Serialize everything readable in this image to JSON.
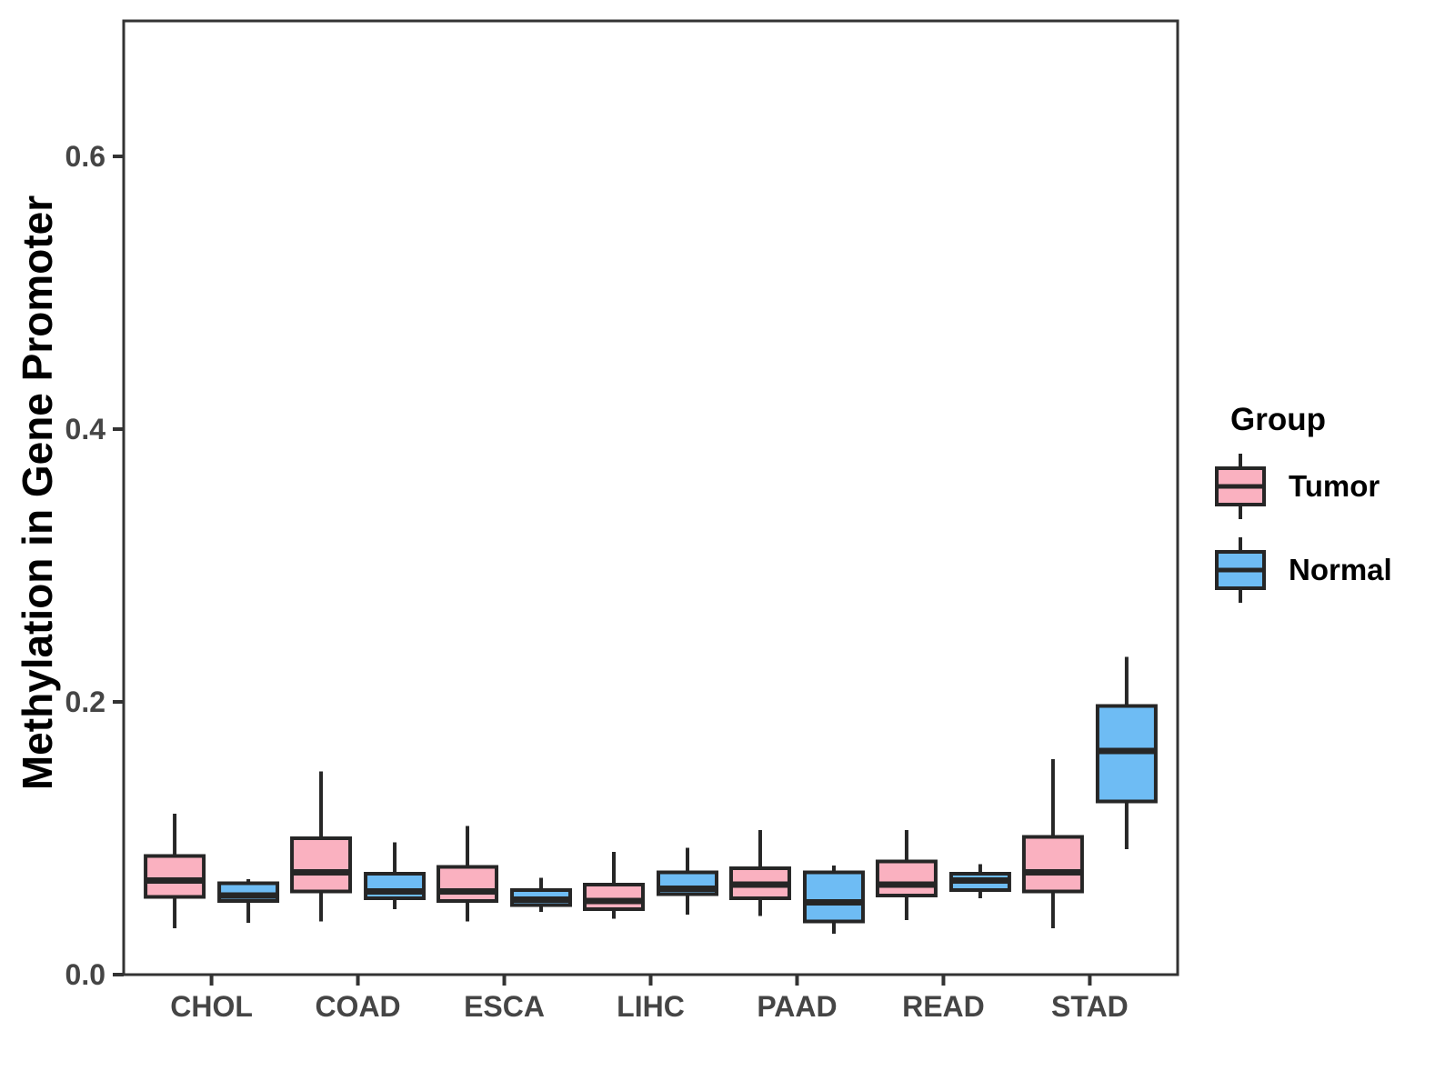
{
  "chart_data": {
    "type": "grouped_boxplot",
    "title": "",
    "xlabel": "",
    "ylabel": "Methylation in Gene Promoter",
    "ylim": [
      0.0,
      0.7
    ],
    "yticks": [
      0.0,
      0.2,
      0.4,
      0.6
    ],
    "ytick_labels": [
      "0.0",
      "0.2",
      "0.4",
      "0.6"
    ],
    "categories": [
      "CHOL",
      "COAD",
      "ESCA",
      "LIHC",
      "PAAD",
      "READ",
      "STAD"
    ],
    "grid": false,
    "legend": {
      "title": "Group",
      "position": "right",
      "entries": [
        "Tumor",
        "Normal"
      ]
    },
    "groups": [
      {
        "name": "Tumor",
        "color": "#FAB1C0"
      },
      {
        "name": "Normal",
        "color": "#6EBCF4"
      }
    ],
    "series": [
      {
        "group": "Tumor",
        "boxes": [
          {
            "category": "CHOL",
            "whisker_low": 0.034,
            "q1": 0.057,
            "median": 0.069,
            "q3": 0.087,
            "whisker_high": 0.118
          },
          {
            "category": "COAD",
            "whisker_low": 0.039,
            "q1": 0.061,
            "median": 0.075,
            "q3": 0.1,
            "whisker_high": 0.149
          },
          {
            "category": "ESCA",
            "whisker_low": 0.039,
            "q1": 0.054,
            "median": 0.061,
            "q3": 0.079,
            "whisker_high": 0.109
          },
          {
            "category": "LIHC",
            "whisker_low": 0.041,
            "q1": 0.048,
            "median": 0.054,
            "q3": 0.066,
            "whisker_high": 0.09
          },
          {
            "category": "PAAD",
            "whisker_low": 0.043,
            "q1": 0.056,
            "median": 0.066,
            "q3": 0.078,
            "whisker_high": 0.106
          },
          {
            "category": "READ",
            "whisker_low": 0.04,
            "q1": 0.058,
            "median": 0.066,
            "q3": 0.083,
            "whisker_high": 0.106
          },
          {
            "category": "STAD",
            "whisker_low": 0.034,
            "q1": 0.061,
            "median": 0.075,
            "q3": 0.101,
            "whisker_high": 0.158
          }
        ]
      },
      {
        "group": "Normal",
        "boxes": [
          {
            "category": "CHOL",
            "whisker_low": 0.038,
            "q1": 0.054,
            "median": 0.058,
            "q3": 0.067,
            "whisker_high": 0.07
          },
          {
            "category": "COAD",
            "whisker_low": 0.048,
            "q1": 0.056,
            "median": 0.061,
            "q3": 0.074,
            "whisker_high": 0.097
          },
          {
            "category": "ESCA",
            "whisker_low": 0.046,
            "q1": 0.051,
            "median": 0.055,
            "q3": 0.062,
            "whisker_high": 0.071
          },
          {
            "category": "LIHC",
            "whisker_low": 0.044,
            "q1": 0.059,
            "median": 0.063,
            "q3": 0.075,
            "whisker_high": 0.093
          },
          {
            "category": "PAAD",
            "whisker_low": 0.03,
            "q1": 0.039,
            "median": 0.053,
            "q3": 0.075,
            "whisker_high": 0.08
          },
          {
            "category": "READ",
            "whisker_low": 0.056,
            "q1": 0.062,
            "median": 0.069,
            "q3": 0.074,
            "whisker_high": 0.081
          },
          {
            "category": "STAD",
            "whisker_low": 0.092,
            "q1": 0.127,
            "median": 0.164,
            "q3": 0.197,
            "whisker_high": 0.233
          }
        ]
      }
    ],
    "styles": {
      "box_border": "#262626",
      "panel_border": "#333333",
      "tick_color": "#333333",
      "tick_label_color": "#454545",
      "background": "#FFFFFF"
    }
  }
}
